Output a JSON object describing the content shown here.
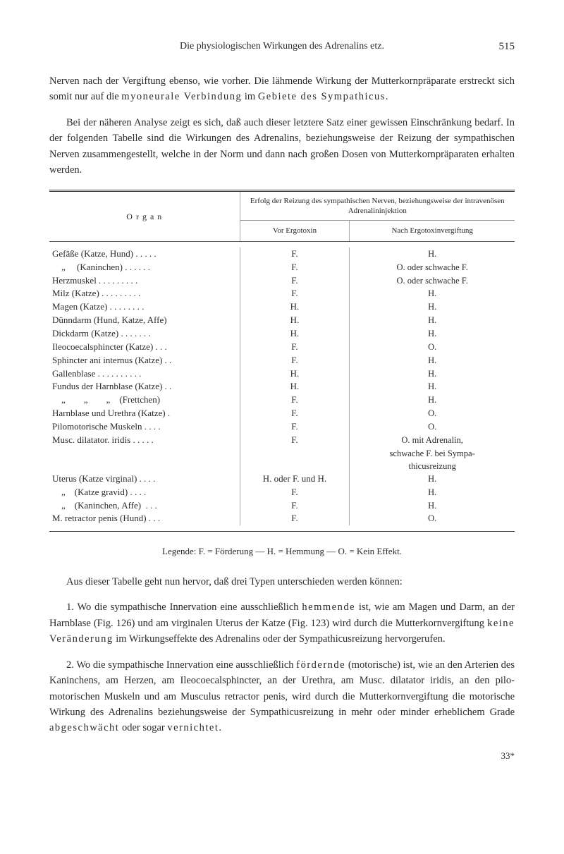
{
  "header": {
    "title": "Die physiologischen Wirkungen des Adrenalins etz.",
    "page_number": "515"
  },
  "paragraphs": {
    "p1": "Nerven nach der Vergiftung ebenso, wie vorher. Die lähmende Wirkung der Mutterkornpräparate erstreckt sich somit nur auf die ",
    "p1_spaced1": "myoneurale Verbindung",
    "p1_mid": " im ",
    "p1_spaced2": "Gebiete des Sympathicus.",
    "p2": "Bei der näheren Analyse zeigt es sich, daß auch dieser letztere Satz einer gewissen Einschränkung bedarf. In der folgenden Tabelle sind die Wirkungen des Adrenalins, beziehungsweise der Reizung der sympathi­schen Nerven zusammengestellt, welche in der Norm und dann nach großen Dosen von Mutterkornpräparaten erhalten werden.",
    "p3": "Aus dieser Tabelle geht nun hervor, daß drei Typen unterschieden werden können:",
    "p4a": "1. Wo die sympathische Innervation eine ausschließlich ",
    "p4_hemmende": "hemmende",
    "p4b": " ist, wie am Magen und Darm, an der Harnblase (Fig. 126) und am virginalen Uterus der Katze (Fig. 123) wird durch die Mutterkornvergiftung ",
    "p4_keine": "keine Veränderung",
    "p4c": " im Wirkungseffekte des Adrenalins oder der Sympathicus­reizung hervorgerufen.",
    "p5a": "2. Wo die sympathische Innervation eine ausschließlich ",
    "p5_fordernde": "fördernde",
    "p5b": " (motorische) ist, wie an den Arterien des Kaninchens, am Herzen, am Ileocoecalsphincter, an der Urethra, am Musc. dilatator iridis, an den pilo­motorischen Muskeln und am Musculus retractor penis, wird durch die Mutter­kornvergiftung die motorische Wirkung des Adrenalins beziehungsweise der Sympathicusreizung in mehr oder minder erheblichem Grade ",
    "p5_abge": "abge­schwächt",
    "p5c": " oder sogar ",
    "p5_vernichtet": "vernichtet."
  },
  "table": {
    "header_organ": "O r g a n",
    "header_right_top": "Erfolg der Reizung des sympathischen Nerven, be­ziehungsweise der intravenösen Adrenalininjektion",
    "header_vor": "Vor Ergotoxin",
    "header_nach": "Nach Ergotoxinvergiftung",
    "rows": [
      {
        "organ": "Gefäße (Katze, Hund) . . . . .",
        "vor": "F.",
        "nach": "H."
      },
      {
        "organ": "    „     (Kaninchen) . . . . . .",
        "vor": "F.",
        "nach": "O. oder schwache F."
      },
      {
        "organ": "Herzmuskel . . . . . . . . .",
        "vor": "F.",
        "nach": "O. oder schwache F."
      },
      {
        "organ": "Milz (Katze) . . . . . . . . .",
        "vor": "F.",
        "nach": "H."
      },
      {
        "organ": "Magen (Katze) . . . . . . . .",
        "vor": "H.",
        "nach": "H."
      },
      {
        "organ": "Dünndarm (Hund, Katze, Affe)",
        "vor": "H.",
        "nach": "H."
      },
      {
        "organ": "Dickdarm (Katze) . . . . . . .",
        "vor": "H.",
        "nach": "H."
      },
      {
        "organ": "Ileocoecalsphincter (Katze) . . .",
        "vor": "F.",
        "nach": "O."
      },
      {
        "organ": "Sphincter ani internus (Katze) . .",
        "vor": "F.",
        "nach": "H."
      },
      {
        "organ": "Gallenblase . . . . . . . . . .",
        "vor": "H.",
        "nach": "H."
      },
      {
        "organ": "Fundus der Harnblase (Katze) . .",
        "vor": "H.",
        "nach": "H."
      },
      {
        "organ": "    „        „        „    (Frettchen)",
        "vor": "F.",
        "nach": "H."
      },
      {
        "organ": "Harnblase und Urethra (Katze) .",
        "vor": "F.",
        "nach": "O."
      },
      {
        "organ": "Pilomotorische Muskeln . . . .",
        "vor": "F.",
        "nach": "O."
      },
      {
        "organ": "Musc. dilatator. iridis . . . . .",
        "vor": "F.",
        "nach": "O. mit Adrenalin,"
      },
      {
        "organ": "",
        "vor": "",
        "nach": "schwache F. bei Sympa-"
      },
      {
        "organ": "",
        "vor": "",
        "nach": "thicusreizung"
      },
      {
        "organ": "Uterus (Katze virginal) . . . .",
        "vor": "H. oder F. und H.",
        "nach": "H."
      },
      {
        "organ": "    „    (Katze gravid) . . . .",
        "vor": "F.",
        "nach": "H."
      },
      {
        "organ": "    „    (Kaninchen, Affe)  . . .",
        "vor": "F.",
        "nach": "H."
      },
      {
        "organ": "M. retractor penis (Hund) . . .",
        "vor": "F.",
        "nach": "O."
      }
    ],
    "legend": "Legende: F. = Förderung — H. = Hemmung — O. = Kein Effekt."
  },
  "footer": {
    "sig": "33*"
  }
}
